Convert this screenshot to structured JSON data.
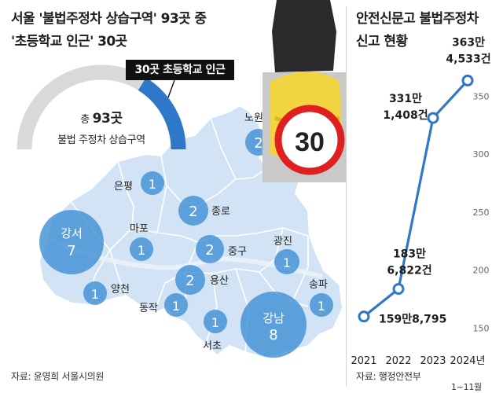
{
  "left": {
    "title_lines": [
      "서울 '불법주정차 상습구역' 93곳 중",
      "'초등학교 인근' 30곳"
    ],
    "callout": "30곳 초등학교 인근",
    "gauge": {
      "total_prefix": "총",
      "total_value": "93곳",
      "total_caption": "불법 주정차 상습구역",
      "highlight_fraction": 0.3226,
      "track_color": "#d9d9d9",
      "highlight_color": "#2f77c8"
    },
    "source": "자료: 윤영희 서울시의원",
    "districts": [
      {
        "name": "노원",
        "count": "2"
      },
      {
        "name": "은평",
        "count": "1"
      },
      {
        "name": "종로",
        "count": "2"
      },
      {
        "name": "마포",
        "count": "1"
      },
      {
        "name": "강서",
        "count": "7"
      },
      {
        "name": "중구",
        "count": "2"
      },
      {
        "name": "광진",
        "count": "1"
      },
      {
        "name": "양천",
        "count": "1"
      },
      {
        "name": "용산",
        "count": "2"
      },
      {
        "name": "동작",
        "count": "1"
      },
      {
        "name": "송파",
        "count": "1"
      },
      {
        "name": "강남",
        "count": "8"
      },
      {
        "name": "서초",
        "count": "1"
      }
    ],
    "sign_text": "30"
  },
  "right": {
    "title_lines": [
      "안전신문고 불법주정차",
      "신고 현황"
    ],
    "source": "자료: 행정안전부",
    "footnote": "1~11월"
  },
  "chart_data": {
    "type": "line",
    "title": "안전신문고 불법주정차 신고 현황",
    "categories": [
      "2021",
      "2022",
      "2023",
      "2024년"
    ],
    "series": [
      {
        "values": [
          1598795,
          1836822,
          3311408,
          3634533
        ]
      }
    ],
    "data_labels": [
      [
        "159만8,795"
      ],
      [
        "183만",
        "6,822건"
      ],
      [
        "331만",
        "1,408건"
      ],
      [
        "363만",
        "4,533건"
      ]
    ],
    "y_ticks": [
      "150",
      "200",
      "250",
      "300",
      "350"
    ],
    "ylim_thousands": [
      140,
      380
    ],
    "color": "#2f77c8",
    "grid": false
  }
}
